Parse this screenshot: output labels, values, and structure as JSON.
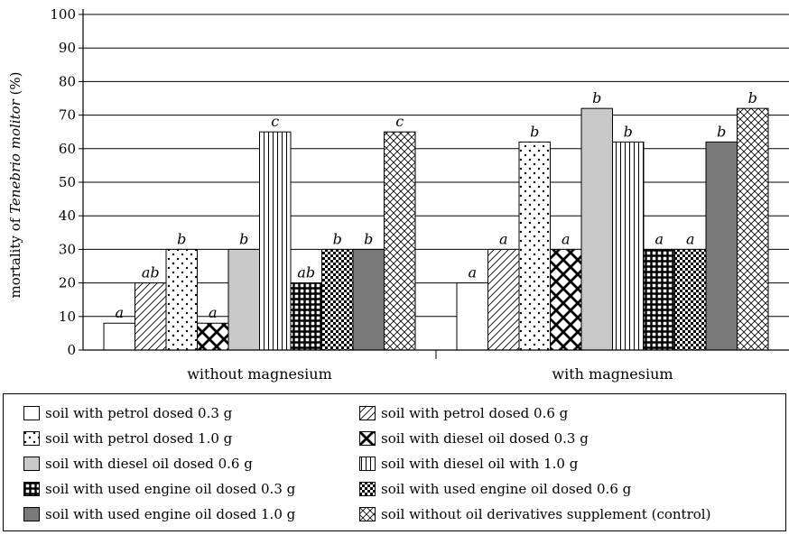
{
  "chart_data": {
    "type": "bar",
    "ylabel_prefix": "mortality of ",
    "ylabel_italic": "Tenebrio molitor",
    "ylabel_suffix": " (%)",
    "ylim": [
      0,
      100
    ],
    "yticks": [
      "0",
      "10",
      "20",
      "30",
      "40",
      "50",
      "60",
      "70",
      "80",
      "90",
      "100"
    ],
    "grid": true,
    "groups": [
      "without magnesium",
      "with magnesium"
    ],
    "series": [
      {
        "name": "soil with petrol dosed 0.3 g",
        "pattern": "blank",
        "values": [
          8,
          20
        ],
        "labels": [
          "a",
          "a"
        ]
      },
      {
        "name": "soil with petrol dosed 0.6 g",
        "pattern": "diag",
        "values": [
          20,
          30
        ],
        "labels": [
          "ab",
          "a"
        ]
      },
      {
        "name": "soil with petrol dosed 1.0 g",
        "pattern": "dots",
        "values": [
          30,
          62
        ],
        "labels": [
          "b",
          "b"
        ]
      },
      {
        "name": "soil with diesel oil dosed 0.3 g",
        "pattern": "bigcross",
        "values": [
          8,
          30
        ],
        "labels": [
          "a",
          "a"
        ]
      },
      {
        "name": "soil with diesel oil dosed 0.6 g",
        "pattern": "grey",
        "values": [
          30,
          72
        ],
        "labels": [
          "b",
          "b"
        ]
      },
      {
        "name": "soil with diesel oil with 1.0 g",
        "pattern": "vlines",
        "values": [
          65,
          62
        ],
        "labels": [
          "c",
          "b"
        ]
      },
      {
        "name": "soil with used engine oil dosed 0.3 g",
        "pattern": "grid",
        "values": [
          20,
          30
        ],
        "labels": [
          "ab",
          "a"
        ]
      },
      {
        "name": "soil with used engine oil dosed 0.6 g",
        "pattern": "checker",
        "values": [
          30,
          30
        ],
        "labels": [
          "b",
          "a"
        ]
      },
      {
        "name": "soil with used engine oil dosed 1.0 g",
        "pattern": "darkgrey",
        "values": [
          30,
          62
        ],
        "labels": [
          "b",
          "b"
        ]
      },
      {
        "name": "soil without oil derivatives supplement (control)",
        "pattern": "crosshatch",
        "values": [
          65,
          72
        ],
        "labels": [
          "c",
          "b"
        ]
      }
    ]
  }
}
